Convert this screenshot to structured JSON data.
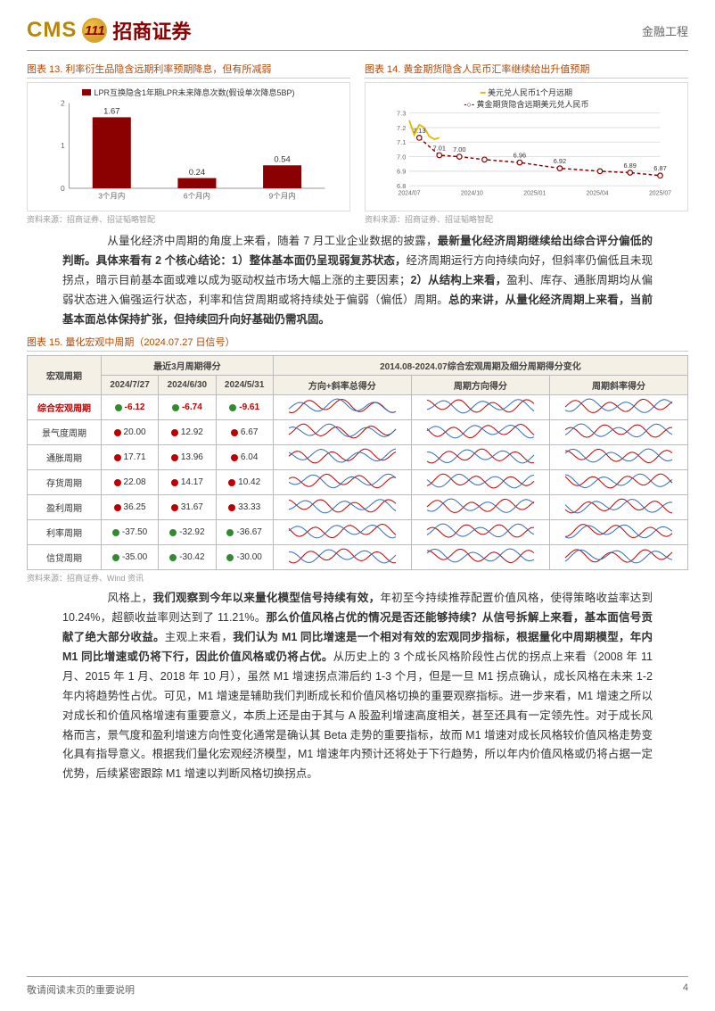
{
  "header": {
    "logo_cms": "CMS",
    "logo_mark": "111",
    "logo_cn": "招商证券",
    "right": "金融工程"
  },
  "chart13": {
    "title": "图表 13. 利率衍生品隐含远期利率预期降息，但有所减弱",
    "type": "bar",
    "legend": "LPR互换隐含1年期LPR未来降息次数(假设单次降息5BP)",
    "legend_color": "#8b0000",
    "categories": [
      "3个月内",
      "6个月内",
      "9个月内"
    ],
    "values": [
      1.67,
      0.24,
      0.54
    ],
    "value_labels": [
      "1.67",
      "0.24",
      "0.54"
    ],
    "ylim": [
      0,
      2
    ],
    "ytick_step": 1,
    "bar_color": "#8b0000",
    "bar_width": 0.45,
    "grid_color": "#dddddd",
    "background_color": "#ffffff",
    "label_fontsize": 9,
    "source": "资料来源：招商证券、招证韬略智配"
  },
  "chart14": {
    "title": "图表 14. 黄金期货隐含人民币汇率继续给出升值预期",
    "type": "line",
    "legend_a": "美元兑人民币1个月远期",
    "legend_b": "黄金期货隐含远期美元兑人民币",
    "series_a_color": "#e6b800",
    "series_b_color": "#8b0000",
    "ylim": [
      6.8,
      7.3
    ],
    "yticks": [
      6.8,
      6.9,
      7.0,
      7.1,
      7.2,
      7.3
    ],
    "x_labels": [
      "2024/07",
      "2024/10",
      "2025/01",
      "2025/04",
      "2025/07"
    ],
    "series_a_x": [
      0,
      0.02,
      0.04,
      0.06,
      0.08,
      0.1,
      0.12
    ],
    "series_a_y": [
      7.25,
      7.15,
      7.22,
      7.2,
      7.14,
      7.12,
      7.13
    ],
    "series_b_x": [
      0.04,
      0.12,
      0.2,
      0.3,
      0.44,
      0.6,
      0.76,
      0.88,
      1.0
    ],
    "series_b_y": [
      7.13,
      7.01,
      7.0,
      6.98,
      6.96,
      6.92,
      6.9,
      6.89,
      6.87
    ],
    "series_b_labels": [
      "7.13",
      "7.01",
      "7.00",
      "",
      "6.96",
      "6.92",
      "",
      "6.89",
      "6.87"
    ],
    "grid_color": "#dddddd",
    "source": "资料来源：招商证券、招证韬略智配"
  },
  "para1": "　　从量化经济中周期的角度上来看，随着 7 月工业企业数据的披露，<b>最新量化经济周期继续给出综合评分偏低的判断。具体来看有 2 个核心结论：1）整体基本面仍呈现弱复苏状态，</b>经济周期运行方向持续向好，但斜率仍偏低且未现拐点，暗示目前基本面或难以成为驱动权益市场大幅上涨的主要因素；<b>2）从结构上来看，</b>盈利、库存、通胀周期均从偏弱状态进入偏强运行状态，利率和信贷周期或将持续处于偏弱（偏低）周期。<b>总的来讲，从量化经济周期上来看，当前基本面总体保持扩张，但持续回升向好基础仍需巩固。</b>",
  "table15": {
    "title": "图表 15. 量化宏观中周期（2024.07.27 日信号）",
    "header_group_a": "最近3月周期得分",
    "header_group_b": "2014.08-2024.07综合宏观周期及细分周期得分变化",
    "col_cycle": "宏观周期",
    "col_d1": "2024/7/27",
    "col_d2": "2024/6/30",
    "col_d3": "2024/5/31",
    "col_s1": "方向+斜率总得分",
    "col_s2": "周期方向得分",
    "col_s3": "周期斜率得分",
    "rows": [
      {
        "name": "综合宏观周期",
        "d1": "-6.12",
        "d2": "-6.74",
        "d3": "-9.61",
        "c1": "g",
        "c2": "g",
        "c3": "g",
        "hl": true
      },
      {
        "name": "景气度周期",
        "d1": "20.00",
        "d2": "12.92",
        "d3": "6.67",
        "c1": "r",
        "c2": "r",
        "c3": "r"
      },
      {
        "name": "通胀周期",
        "d1": "17.71",
        "d2": "13.96",
        "d3": "6.04",
        "c1": "r",
        "c2": "r",
        "c3": "r"
      },
      {
        "name": "存货周期",
        "d1": "22.08",
        "d2": "14.17",
        "d3": "10.42",
        "c1": "r",
        "c2": "r",
        "c3": "r"
      },
      {
        "name": "盈利周期",
        "d1": "36.25",
        "d2": "31.67",
        "d3": "33.33",
        "c1": "r",
        "c2": "r",
        "c3": "r"
      },
      {
        "name": "利率周期",
        "d1": "-37.50",
        "d2": "-32.92",
        "d3": "-36.67",
        "c1": "g",
        "c2": "g",
        "c3": "g"
      },
      {
        "name": "信贷周期",
        "d1": "-35.00",
        "d2": "-30.42",
        "d3": "-30.00",
        "c1": "g",
        "c2": "g",
        "c3": "g"
      }
    ],
    "spark_color_a": "#c00000",
    "spark_color_b": "#2e6bb8",
    "source": "资料来源：招商证券、Wind 资讯"
  },
  "para2": "　　风格上，<b>我们观察到今年以来量化模型信号持续有效，</b>年初至今持续推荐配置价值风格，使得策略收益率达到 10.24%，超额收益率则达到了 11.21%。<b>那么价值风格占优的情况是否还能够持续？从信号拆解上来看，基本面信号贡献了绝大部分收益。</b>主观上来看，<b>我们认为 M1 同比增速是一个相对有效的宏观同步指标，根据量化中周期模型，年内 M1 同比增速或仍将下行，因此价值风格或仍将占优。</b>从历史上的 3 个成长风格阶段性占优的拐点上来看（2008 年 11 月、2015 年 1 月、2018 年 10 月），虽然 M1 增速拐点滞后约 1-3 个月，但是一旦 M1 拐点确认，成长风格在未来 1-2 年内将趋势性占优。可见，M1 增速是辅助我们判断成长和价值风格切换的重要观察指标。进一步来看，M1 增速之所以对成长和价值风格增速有重要意义，本质上还是由于其与 A 股盈利增速高度相关，甚至还具有一定领先性。对于成长风格而言，景气度和盈利增速方向性变化通常是确认其 Beta 走势的重要指标，故而 M1 增速对成长风格较价值风格走势变化具有指导意义。根据我们量化宏观经济模型，M1 增速年内预计还将处于下行趋势，所以年内价值风格或仍将占据一定优势，后续紧密跟踪 M1 增速以判断风格切换拐点。",
  "footer": {
    "left": "敬请阅读末页的重要说明",
    "page": "4"
  }
}
